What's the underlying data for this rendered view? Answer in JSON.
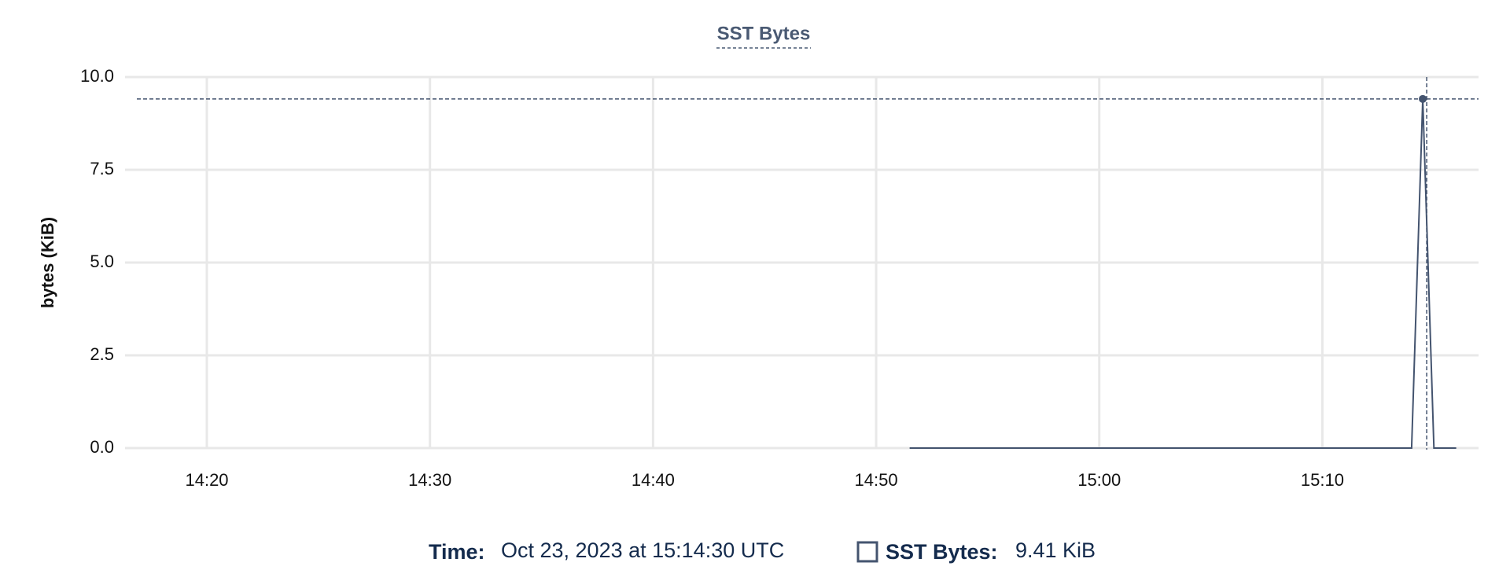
{
  "chart_data": {
    "type": "line",
    "title": "SST Bytes",
    "y_label": "bytes (KiB)",
    "x": [
      "14:51:30",
      "15:14:00",
      "15:14:30",
      "15:15:00",
      "15:16:00"
    ],
    "series": [
      {
        "name": "SST Bytes",
        "color": "#44546f",
        "values": [
          0,
          0,
          9.41,
          0,
          0
        ]
      }
    ],
    "xlim": [
      "14:16:20",
      "15:17:00"
    ],
    "xticks": [
      "14:20",
      "14:30",
      "14:40",
      "14:50",
      "15:00",
      "15:10"
    ],
    "ylim": [
      0,
      10
    ],
    "yticks": [
      {
        "value": 0,
        "label": "0.0"
      },
      2.5,
      {
        "value": 5,
        "label": "5.0"
      },
      7.5,
      {
        "value": 10,
        "label": "10.0"
      }
    ],
    "grid": true,
    "hover_index": 2,
    "tooltip": {
      "time_label": "Time:",
      "time": "Oct 23, 2023 at 15:14:30 UTC",
      "series_label": "SST Bytes:",
      "value": "9.41 KiB"
    }
  }
}
